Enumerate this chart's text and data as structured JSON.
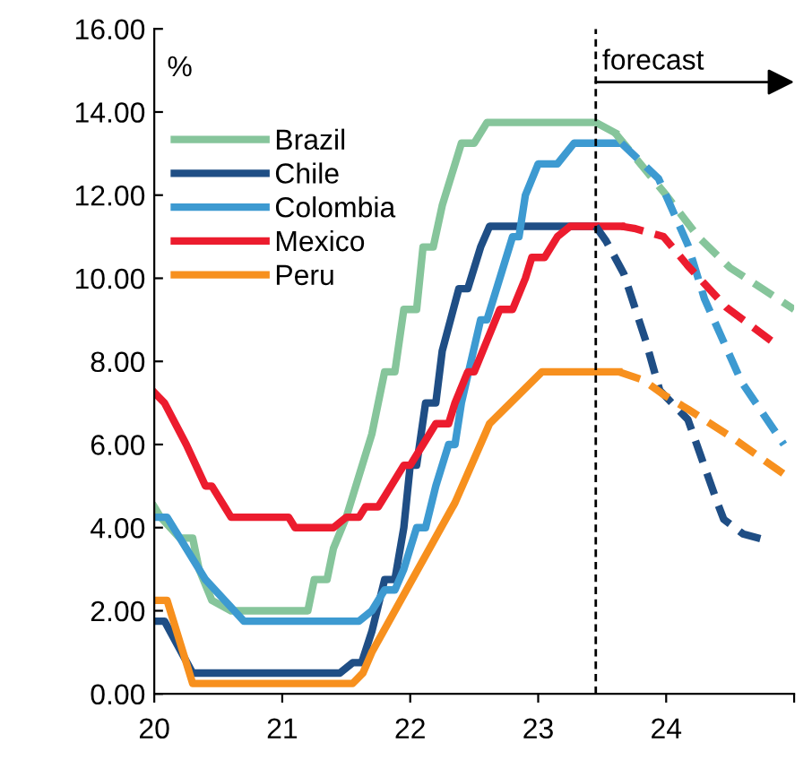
{
  "chart_data": {
    "type": "line",
    "ylabel": "%",
    "xlim": [
      20,
      25
    ],
    "xticks": [
      20,
      21,
      22,
      23,
      24,
      {
        "value": 25,
        "label": null
      }
    ],
    "ylim": [
      0,
      16
    ],
    "yticks": [
      {
        "value": 0,
        "label": "0.00"
      },
      {
        "value": 2,
        "label": "2.00"
      },
      {
        "value": 4,
        "label": "4.00"
      },
      {
        "value": 6,
        "label": "6.00"
      },
      {
        "value": 8,
        "label": "8.00"
      },
      {
        "value": 10,
        "label": "10.00"
      },
      {
        "value": 12,
        "label": "12.00"
      },
      {
        "value": 14,
        "label": "14.00"
      },
      {
        "value": 16,
        "label": "16.00"
      }
    ],
    "grid": false,
    "legend": "top left",
    "marker": "none",
    "ref_lines": [
      {
        "axis": "x",
        "value": 23.45,
        "label": "forecast",
        "line_style": "dashed",
        "color": "#000000"
      }
    ],
    "series": [
      {
        "name": "Brazil",
        "color": "#86c59b",
        "line_style": "solid",
        "x": [
          20,
          20.05,
          20.2,
          20.3,
          20.35,
          20.45,
          20.6,
          21.2,
          21.25,
          21.35,
          21.4,
          21.5,
          21.6,
          21.7,
          21.8,
          21.88,
          21.95,
          22.05,
          22.1,
          22.18,
          22.25,
          22.35,
          22.4,
          22.5,
          22.6,
          23.45,
          23.6
        ],
        "values": [
          4.5,
          4.25,
          3.75,
          3.75,
          3.0,
          2.25,
          2.0,
          2.0,
          2.75,
          2.75,
          3.5,
          4.25,
          5.25,
          6.25,
          7.75,
          7.75,
          9.25,
          9.25,
          10.75,
          10.75,
          11.75,
          12.75,
          13.25,
          13.25,
          13.75,
          13.75,
          13.5
        ]
      },
      {
        "name": "Chile",
        "color": "#1f4e85",
        "line_style": "solid",
        "x": [
          20,
          20.08,
          20.3,
          21.45,
          21.55,
          21.62,
          21.7,
          21.8,
          21.88,
          21.95,
          22.0,
          22.05,
          22.12,
          22.2,
          22.25,
          22.38,
          22.45,
          22.55,
          22.62,
          23.45
        ],
        "values": [
          1.75,
          1.75,
          0.5,
          0.5,
          0.75,
          0.75,
          1.5,
          2.75,
          2.75,
          4.0,
          5.5,
          5.5,
          7.0,
          7.0,
          8.25,
          9.75,
          9.75,
          10.75,
          11.25,
          11.25
        ]
      },
      {
        "name": "Colombia",
        "color": "#3d9ad1",
        "line_style": "solid",
        "x": [
          20,
          20.1,
          20.4,
          20.55,
          20.7,
          21.6,
          21.7,
          21.8,
          21.88,
          21.95,
          22.05,
          22.12,
          22.2,
          22.3,
          22.35,
          22.4,
          22.55,
          22.6,
          22.7,
          22.8,
          22.85,
          22.9,
          23.0,
          23.15,
          23.28,
          23.65
        ],
        "values": [
          4.25,
          4.25,
          2.75,
          2.25,
          1.75,
          1.75,
          2.0,
          2.5,
          2.5,
          3.0,
          4.0,
          4.0,
          5.0,
          6.0,
          6.0,
          7.0,
          9.0,
          9.0,
          10.0,
          11.0,
          11.0,
          12.0,
          12.75,
          12.75,
          13.25,
          13.25
        ]
      },
      {
        "name": "Mexico",
        "color": "#ec1c2e",
        "line_style": "solid",
        "x": [
          20,
          20.08,
          20.25,
          20.4,
          20.45,
          20.55,
          20.6,
          21.05,
          21.1,
          21.4,
          21.5,
          21.6,
          21.65,
          21.75,
          21.8,
          21.85,
          21.95,
          22.0,
          22.1,
          22.2,
          22.3,
          22.35,
          22.45,
          22.5,
          22.6,
          22.7,
          22.8,
          22.9,
          22.95,
          23.05,
          23.15,
          23.25,
          23.65
        ],
        "values": [
          7.25,
          7.0,
          6.0,
          5.0,
          5.0,
          4.5,
          4.25,
          4.25,
          4.0,
          4.0,
          4.25,
          4.25,
          4.5,
          4.5,
          4.75,
          5.0,
          5.5,
          5.5,
          6.0,
          6.5,
          6.5,
          7.0,
          7.75,
          7.75,
          8.5,
          9.25,
          9.25,
          10.0,
          10.5,
          10.5,
          11.0,
          11.25,
          11.25
        ]
      },
      {
        "name": "Peru",
        "color": "#f7901e",
        "line_style": "solid",
        "x": [
          20,
          20.1,
          20.3,
          21.55,
          21.63,
          21.7,
          22.35,
          22.62,
          23.03,
          23.63
        ],
        "values": [
          2.25,
          2.25,
          0.25,
          0.25,
          0.5,
          1.0,
          4.6,
          6.5,
          7.75,
          7.75
        ]
      },
      {
        "color": "#86c59b",
        "line_style": "dashed",
        "x": [
          23.6,
          24.0,
          24.25,
          24.5,
          24.75,
          25.0
        ],
        "values": [
          13.5,
          12.0,
          11.0,
          10.25,
          9.75,
          9.25
        ]
      },
      {
        "color": "#1f4e85",
        "line_style": "dashed",
        "x": [
          23.45,
          23.53,
          23.67,
          23.84,
          23.95,
          24.17,
          24.4,
          24.45,
          24.6,
          24.78
        ],
        "values": [
          11.25,
          10.9,
          10.1,
          8.5,
          7.3,
          6.6,
          4.6,
          4.2,
          3.85,
          3.7
        ]
      },
      {
        "color": "#3d9ad1",
        "line_style": "dashed",
        "x": [
          23.65,
          23.94,
          24.17,
          24.3,
          24.59,
          24.92
        ],
        "values": [
          13.25,
          12.4,
          10.8,
          9.5,
          7.5,
          6.0
        ]
      },
      {
        "color": "#ec1c2e",
        "line_style": "dashed",
        "x": [
          23.65,
          23.75,
          23.98,
          24.17,
          24.47,
          24.82
        ],
        "values": [
          11.25,
          11.2,
          11.0,
          10.3,
          9.3,
          8.5
        ]
      },
      {
        "color": "#f7901e",
        "line_style": "dashed",
        "x": [
          23.63,
          23.82,
          23.98,
          24.17,
          24.5,
          24.96
        ],
        "values": [
          7.75,
          7.55,
          7.2,
          6.85,
          6.2,
          5.2
        ]
      }
    ]
  }
}
